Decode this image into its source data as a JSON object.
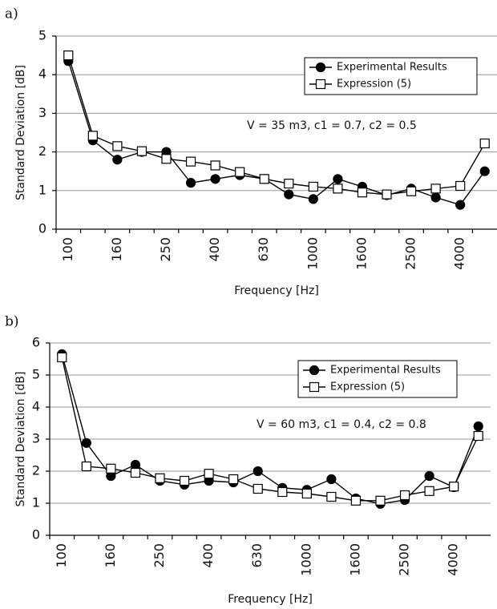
{
  "chart_data": [
    {
      "type": "line",
      "panel_label": "a)",
      "categories": [
        "100",
        null,
        "160",
        null,
        "250",
        null,
        "400",
        null,
        "630",
        null,
        "1000",
        null,
        "1600",
        null,
        "2500",
        null,
        "4000",
        null
      ],
      "x_label": "Frequency [Hz]",
      "y_label": "Standard Deviation [dB]",
      "annotation": "V = 35 m3, c1 = 0.7, c2 = 0.5",
      "ylim": [
        0,
        5
      ],
      "yticks": [
        0,
        1,
        2,
        3,
        4,
        5
      ],
      "grid": true,
      "legend": "upper right",
      "series": [
        {
          "name": "Experimental Results",
          "color": "#000",
          "marker": "circle",
          "marker_fill": "#000",
          "values": [
            4.35,
            2.3,
            1.8,
            2.0,
            2.0,
            1.2,
            1.3,
            1.4,
            1.3,
            0.9,
            0.78,
            1.3,
            1.1,
            0.88,
            1.05,
            0.82,
            0.63,
            1.5
          ]
        },
        {
          "name": "Expression (5)",
          "color": "#000",
          "marker": "square",
          "marker_fill": "#fff",
          "values": [
            4.5,
            2.42,
            2.15,
            2.02,
            1.82,
            1.75,
            1.65,
            1.48,
            1.3,
            1.18,
            1.1,
            1.05,
            0.95,
            0.9,
            0.98,
            1.05,
            1.12,
            2.22
          ]
        }
      ]
    },
    {
      "type": "line",
      "panel_label": "b)",
      "categories": [
        "100",
        null,
        "160",
        null,
        "250",
        null,
        "400",
        null,
        "630",
        null,
        "1000",
        null,
        "1600",
        null,
        "2500",
        null,
        "4000",
        null
      ],
      "x_label": "Frequency [Hz]",
      "y_label": "Standard Deviation [dB]",
      "annotation": "V = 60 m3, c1 = 0.4, c2 = 0.8",
      "ylim": [
        0,
        6
      ],
      "yticks": [
        0,
        1,
        2,
        3,
        4,
        5,
        6
      ],
      "grid": true,
      "legend": "upper right",
      "series": [
        {
          "name": "Experimental Results",
          "color": "#000",
          "marker": "circle",
          "marker_fill": "#000",
          "values": [
            5.65,
            2.88,
            1.85,
            2.2,
            1.7,
            1.58,
            1.7,
            1.65,
            2.0,
            1.48,
            1.42,
            1.75,
            1.15,
            0.98,
            1.1,
            1.85,
            1.5,
            3.4
          ]
        },
        {
          "name": "Expression (5)",
          "color": "#000",
          "marker": "square",
          "marker_fill": "#fff",
          "values": [
            5.55,
            2.15,
            2.08,
            1.95,
            1.78,
            1.7,
            1.92,
            1.75,
            1.45,
            1.35,
            1.3,
            1.2,
            1.08,
            1.08,
            1.25,
            1.38,
            1.52,
            3.1
          ]
        }
      ]
    }
  ]
}
